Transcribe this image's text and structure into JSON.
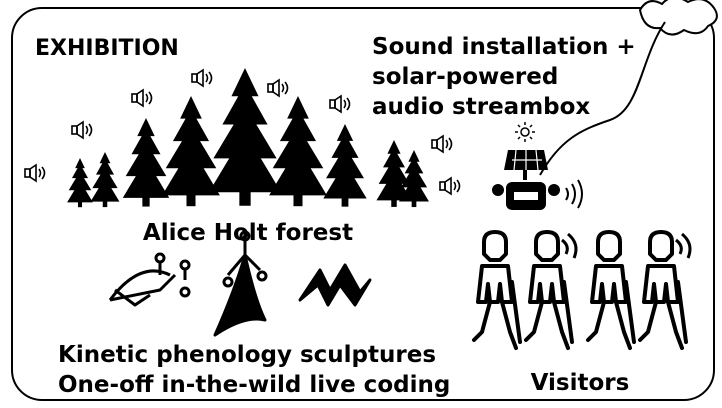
{
  "header": {
    "title": "EXHIBITION"
  },
  "sound": {
    "lines": [
      "Sound installation +",
      "solar-powered",
      "audio streambox"
    ]
  },
  "forest": {
    "label": "Alice Holt forest"
  },
  "sculptures": {
    "lines": [
      "Kinetic phenology sculptures",
      "One-off in-the-wild live coding"
    ]
  },
  "visitors": {
    "label": "Visitors"
  }
}
